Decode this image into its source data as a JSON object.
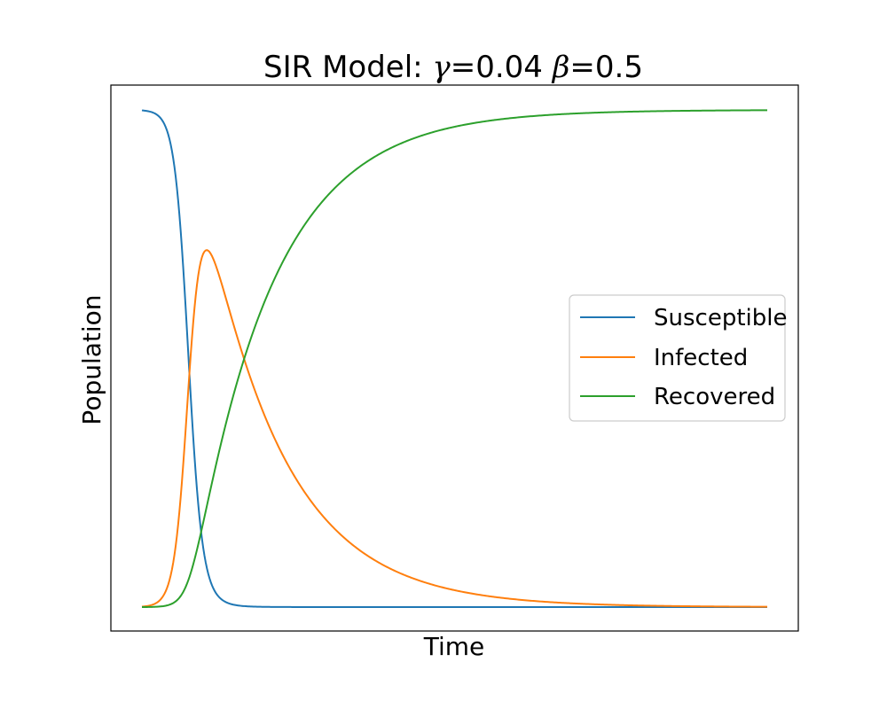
{
  "chart_data": {
    "type": "line",
    "title": {
      "prefix": "SIR Model: ",
      "gamma_symbol": "γ",
      "gamma_value": "=0.04 ",
      "beta_symbol": "β",
      "beta_value": "=0.5"
    },
    "gamma": 0.04,
    "beta": 0.5,
    "xlabel": "Time",
    "ylabel": "Population",
    "xticks": "none",
    "yticks": "none",
    "grid": false,
    "legend_position": "center-right",
    "t_range": [
      0,
      200
    ],
    "population_range": [
      0,
      1
    ],
    "initial_conditions": {
      "S": 0.999,
      "I": 0.001,
      "R": 0.0
    },
    "series": [
      {
        "name": "Susceptible",
        "key": "S",
        "color": "#1f77b4"
      },
      {
        "name": "Infected",
        "key": "I",
        "color": "#ff7f0e"
      },
      {
        "name": "Recovered",
        "key": "R",
        "color": "#2ca02c"
      }
    ]
  }
}
